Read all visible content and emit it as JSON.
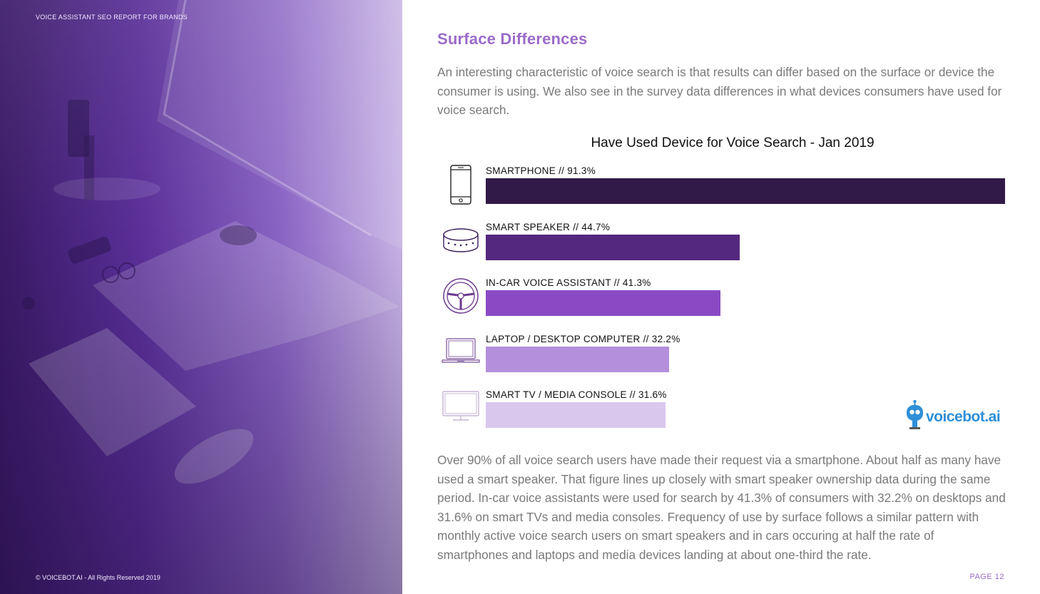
{
  "report": {
    "title": "VOICE ASSISTANT SEO REPORT FOR BRANDS",
    "copyright": "© VOICEBOT.AI - All Rights Reserved 2019",
    "page_number": "PAGE 12"
  },
  "section": {
    "title": "Surface Differences",
    "intro": "An interesting characteristic of voice search is that results can differ based on the surface or device the consumer is using. We also see in the survey data differences in what devices consumers have used for voice search.",
    "summary": "Over 90% of all voice search users have made their request via a smartphone. About half as many have used a smart speaker. That figure lines up closely with smart speaker ownership data during the same period. In-car voice assistants were used for search by 41.3% of consumers with 32.2% on desktops and 31.6% on smart TVs and media consoles. Frequency of use by surface follows a similar pattern with monthly active voice search users on smart speakers and in cars occuring at half the rate of smartphones and laptops and media devices landing at about one-third the rate."
  },
  "logo": {
    "text": "voicebot.ai"
  },
  "chart_data": {
    "type": "bar",
    "orientation": "horizontal",
    "title": "Have Used Device for Voice Search - Jan 2019",
    "unit": "%",
    "xlim": [
      0,
      91.3
    ],
    "grid": false,
    "legend": "none",
    "categories": [
      "SMARTPHONE",
      "SMART SPEAKER",
      "IN-CAR VOICE ASSISTANT",
      "LAPTOP / DESKTOP COMPUTER",
      "SMART TV / MEDIA CONSOLE"
    ],
    "labels": [
      "SMARTPHONE // 91.3%",
      "SMART SPEAKER // 44.7%",
      "IN-CAR VOICE ASSISTANT // 41.3%",
      "LAPTOP / DESKTOP COMPUTER // 32.2%",
      "SMART TV / MEDIA CONSOLE // 31.6%"
    ],
    "values": [
      91.3,
      44.7,
      41.3,
      32.2,
      31.6
    ],
    "colors": [
      "#311a48",
      "#55287f",
      "#8a4ac4",
      "#b38fdc",
      "#d9c7ee"
    ],
    "icons": [
      "smartphone-icon",
      "smart-speaker-icon",
      "steering-wheel-icon",
      "laptop-icon",
      "tv-icon"
    ]
  }
}
